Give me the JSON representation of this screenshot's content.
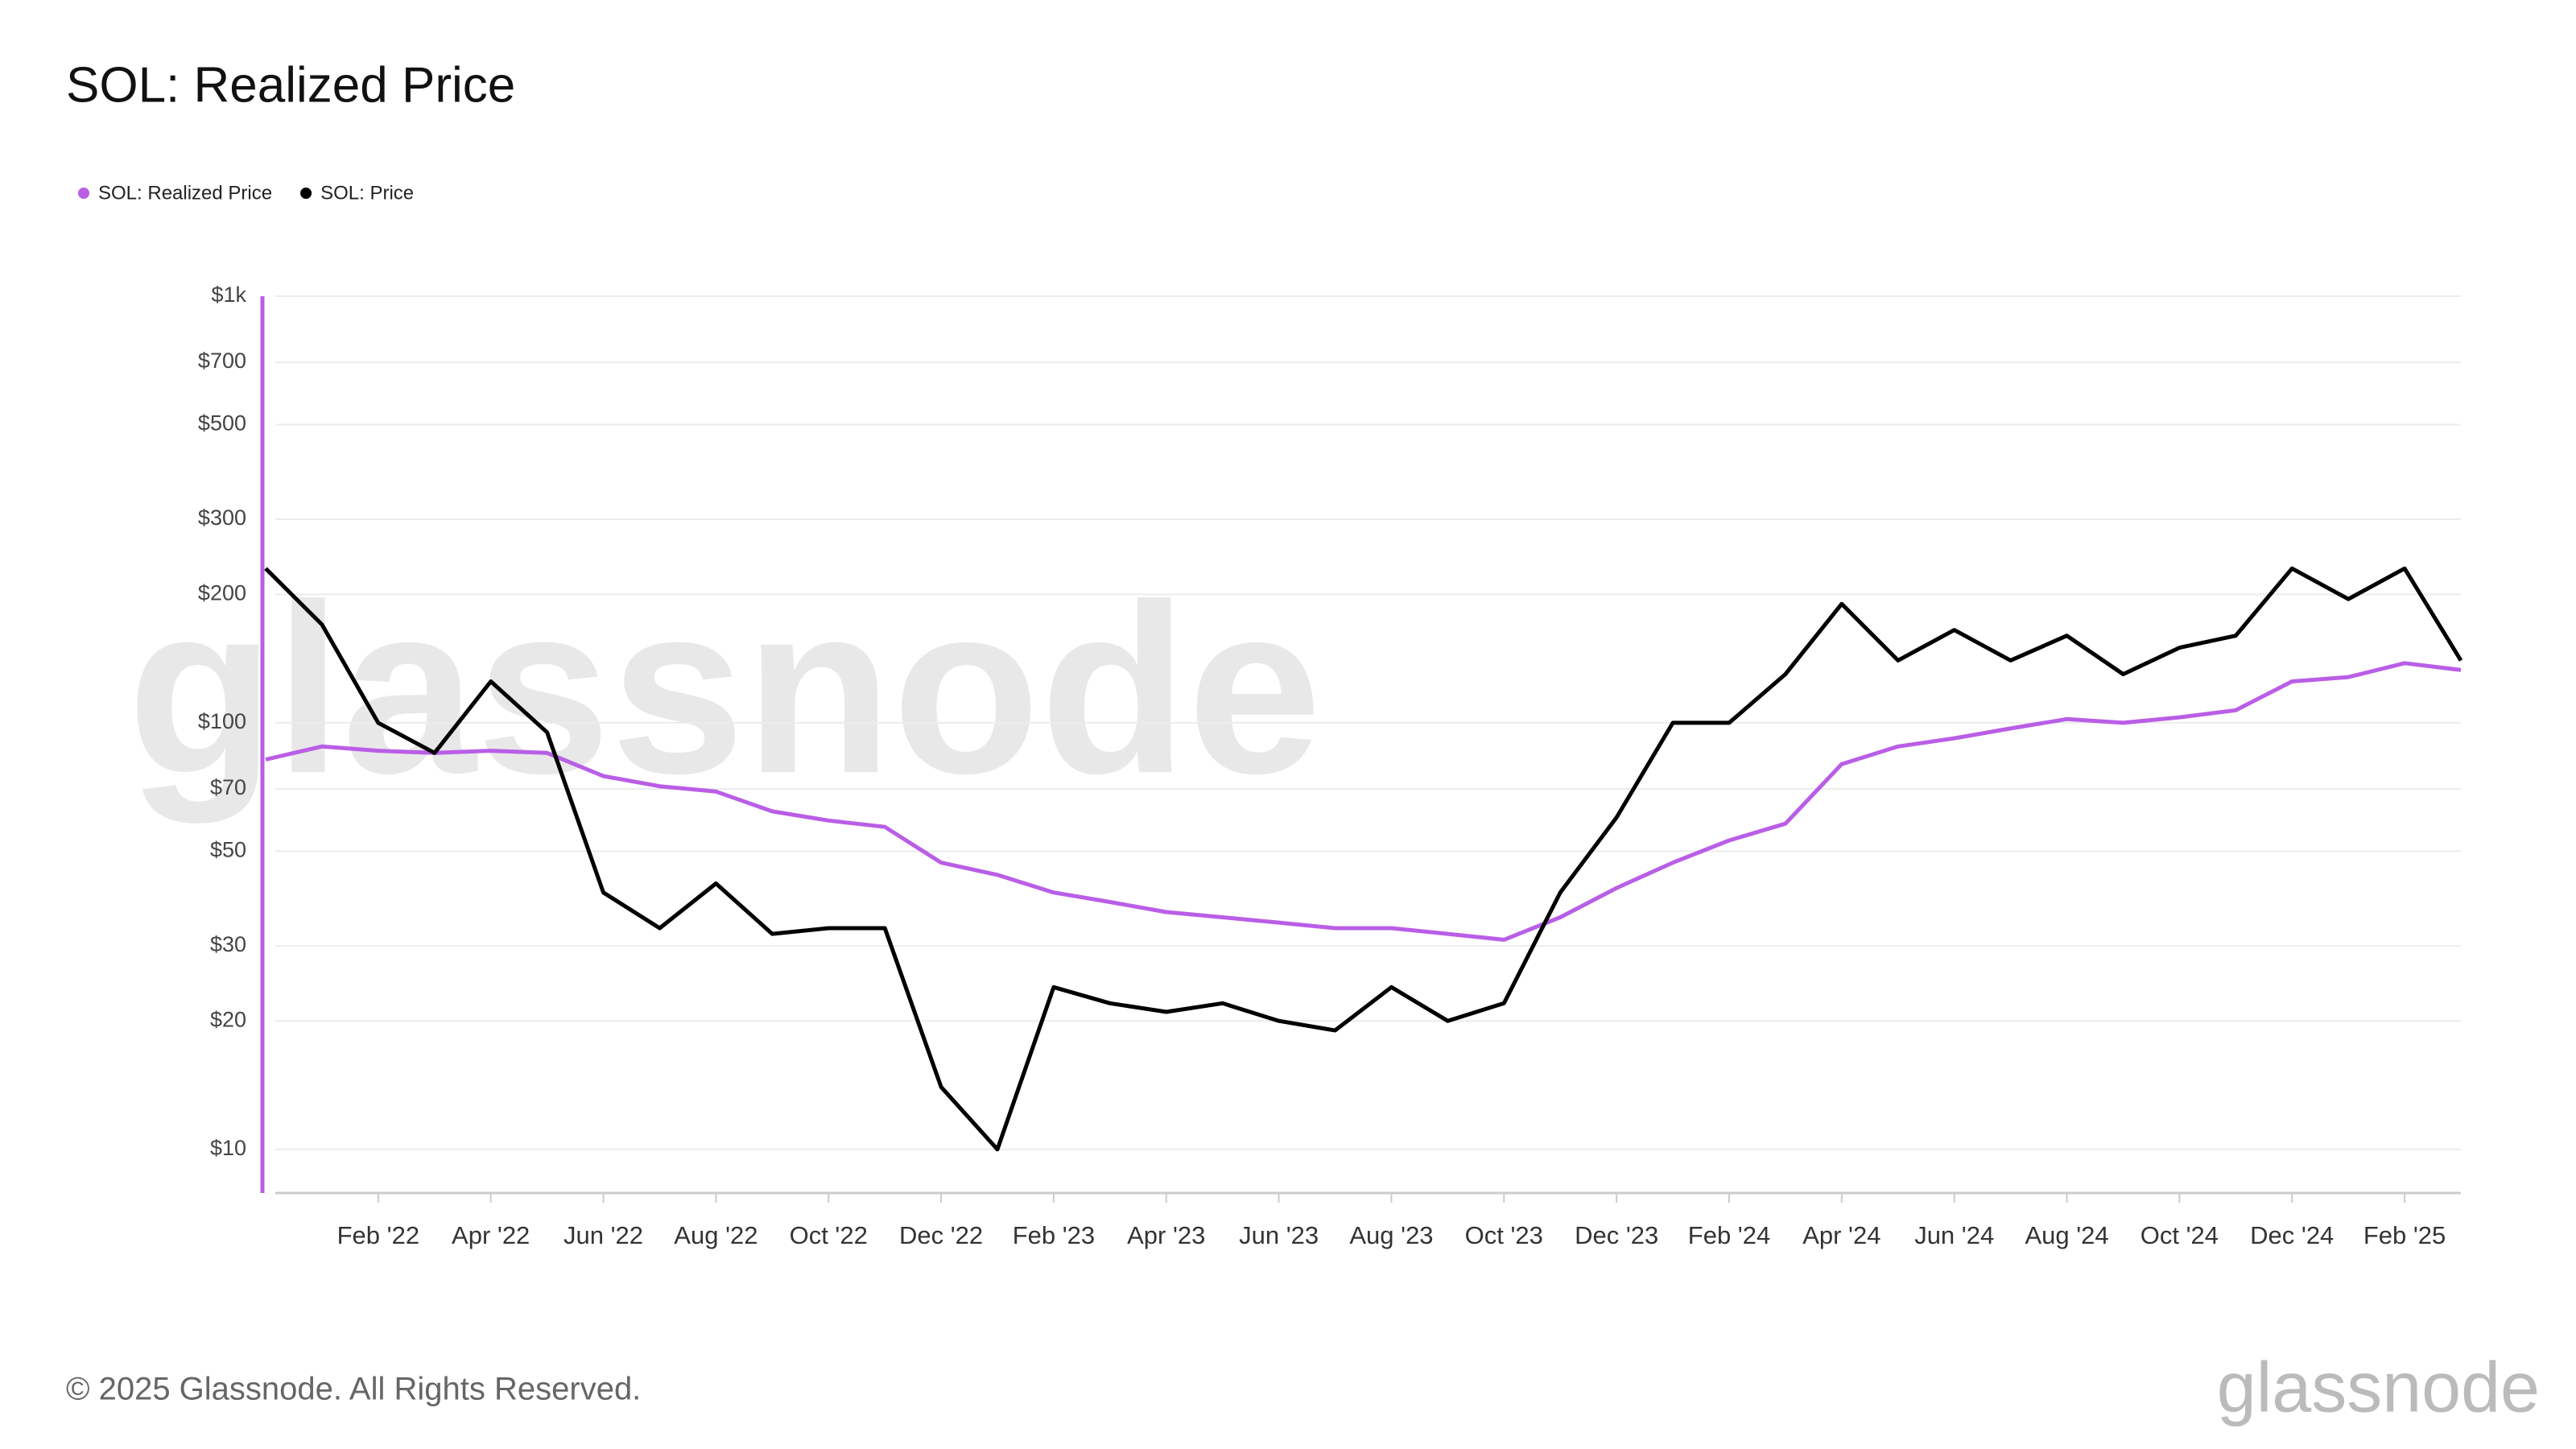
{
  "chart_data": {
    "type": "line",
    "title": "SOL: Realized Price",
    "copyright": "© 2025 Glassnode. All Rights Reserved.",
    "watermark": "glassnode",
    "log_scale": true,
    "grid": true,
    "legend": "top-left",
    "x": [
      "2021-12",
      "2022-01",
      "2022-02",
      "2022-03",
      "2022-04",
      "2022-05",
      "2022-06",
      "2022-07",
      "2022-08",
      "2022-09",
      "2022-10",
      "2022-11",
      "2022-12",
      "2023-01",
      "2023-02",
      "2023-03",
      "2023-04",
      "2023-05",
      "2023-06",
      "2023-07",
      "2023-08",
      "2023-09",
      "2023-10",
      "2023-11",
      "2023-12",
      "2024-01",
      "2024-02",
      "2024-03",
      "2024-04",
      "2024-05",
      "2024-06",
      "2024-07",
      "2024-08",
      "2024-09",
      "2024-10",
      "2024-11",
      "2024-12",
      "2025-01",
      "2025-02",
      "2025-03"
    ],
    "series": [
      {
        "name": "SOL: Realized Price",
        "color": "#b95ee6",
        "values": [
          82,
          88,
          86,
          85,
          86,
          85,
          75,
          71,
          69,
          62,
          59,
          57,
          47,
          44,
          40,
          38,
          36,
          35,
          34,
          33,
          33,
          32,
          31,
          35,
          41,
          47,
          53,
          58,
          80,
          88,
          92,
          97,
          102,
          100,
          103,
          107,
          125,
          128,
          138,
          133
        ]
      },
      {
        "name": "SOL: Price",
        "color": "#000000",
        "values": [
          230,
          170,
          100,
          85,
          125,
          95,
          40,
          33,
          42,
          32,
          33,
          33,
          14,
          10,
          24,
          22,
          21,
          22,
          20,
          19,
          24,
          20,
          22,
          40,
          60,
          100,
          100,
          130,
          190,
          140,
          165,
          140,
          160,
          130,
          150,
          160,
          230,
          195,
          230,
          140
        ]
      }
    ],
    "xlim": [
      "2021-12",
      "2025-03"
    ],
    "xticks": [
      {
        "value": "2022-02",
        "label": "Feb '22"
      },
      {
        "value": "2022-04",
        "label": "Apr '22"
      },
      {
        "value": "2022-06",
        "label": "Jun '22"
      },
      {
        "value": "2022-08",
        "label": "Aug '22"
      },
      {
        "value": "2022-10",
        "label": "Oct '22"
      },
      {
        "value": "2022-12",
        "label": "Dec '22"
      },
      {
        "value": "2023-02",
        "label": "Feb '23"
      },
      {
        "value": "2023-04",
        "label": "Apr '23"
      },
      {
        "value": "2023-06",
        "label": "Jun '23"
      },
      {
        "value": "2023-08",
        "label": "Aug '23"
      },
      {
        "value": "2023-10",
        "label": "Oct '23"
      },
      {
        "value": "2023-12",
        "label": "Dec '23"
      },
      {
        "value": "2024-02",
        "label": "Feb '24"
      },
      {
        "value": "2024-04",
        "label": "Apr '24"
      },
      {
        "value": "2024-06",
        "label": "Jun '24"
      },
      {
        "value": "2024-08",
        "label": "Aug '24"
      },
      {
        "value": "2024-10",
        "label": "Oct '24"
      },
      {
        "value": "2024-12",
        "label": "Dec '24"
      },
      {
        "value": "2025-02",
        "label": "Feb '25"
      }
    ],
    "ylim": [
      7.9,
      1000
    ],
    "yticks": [
      {
        "value": 10,
        "label": "$10"
      },
      {
        "value": 20,
        "label": "$20"
      },
      {
        "value": 30,
        "label": "$30"
      },
      {
        "value": 50,
        "label": "$50"
      },
      {
        "value": 70,
        "label": "$70"
      },
      {
        "value": 100,
        "label": "$100"
      },
      {
        "value": 200,
        "label": "$200"
      },
      {
        "value": 300,
        "label": "$300"
      },
      {
        "value": 500,
        "label": "$500"
      },
      {
        "value": 700,
        "label": "$700"
      },
      {
        "value": 1000,
        "label": "$1k"
      }
    ]
  }
}
